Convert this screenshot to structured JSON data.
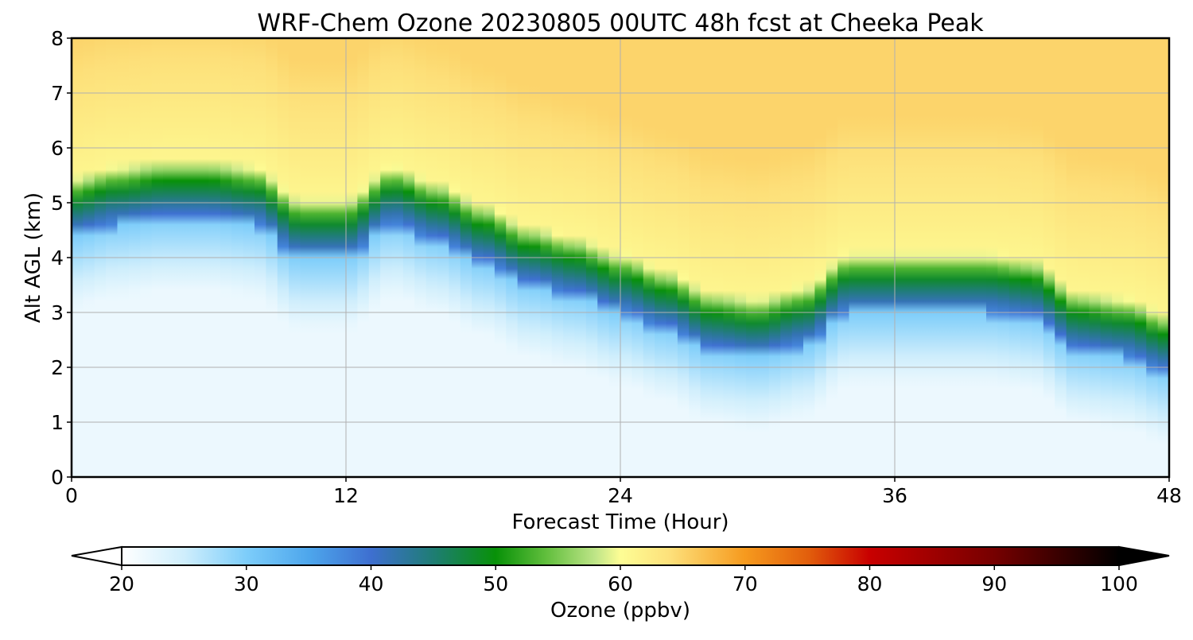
{
  "chart_data": {
    "type": "heatmap",
    "title": "WRF-Chem Ozone  20230805 00UTC 48h fcst at Cheeka Peak",
    "xlabel": "Forecast Time (Hour)",
    "ylabel": "Alt AGL (km)",
    "xlim": [
      0,
      48
    ],
    "ylim": [
      0,
      8
    ],
    "x_ticks": [
      "0",
      "12",
      "24",
      "36",
      "48"
    ],
    "y_ticks": [
      "0",
      "1",
      "2",
      "3",
      "4",
      "5",
      "6",
      "7",
      "8"
    ],
    "grid": true,
    "x": [
      0,
      2,
      4,
      6,
      8,
      10,
      12,
      14,
      16,
      18,
      20,
      22,
      24,
      26,
      28,
      30,
      32,
      34,
      36,
      38,
      40,
      42,
      44,
      46,
      48
    ],
    "ozone_transition_altitude_km": [
      5.1,
      5.3,
      5.4,
      5.4,
      5.3,
      4.7,
      4.7,
      5.3,
      5.0,
      4.6,
      4.2,
      4.0,
      3.7,
      3.4,
      3.0,
      2.9,
      3.1,
      3.7,
      3.7,
      3.7,
      3.7,
      3.6,
      3.0,
      2.9,
      2.6
    ],
    "colorbar": {
      "label": "Ozone  (ppbv)",
      "min": 20,
      "max": 100,
      "ticks": [
        "20",
        "30",
        "40",
        "50",
        "60",
        "70",
        "80",
        "90",
        "100"
      ],
      "extend": "both",
      "color_stops": [
        {
          "value": 20,
          "color": "#ffffff"
        },
        {
          "value": 25,
          "color": "#cfeefc"
        },
        {
          "value": 30,
          "color": "#7dcdfa"
        },
        {
          "value": 35,
          "color": "#4da6ec"
        },
        {
          "value": 40,
          "color": "#3e6fd0"
        },
        {
          "value": 45,
          "color": "#1e7d73"
        },
        {
          "value": 50,
          "color": "#089108"
        },
        {
          "value": 54,
          "color": "#60be3c"
        },
        {
          "value": 58,
          "color": "#bfe588"
        },
        {
          "value": 60,
          "color": "#fdfd95"
        },
        {
          "value": 64,
          "color": "#fde07a"
        },
        {
          "value": 70,
          "color": "#f69a1e"
        },
        {
          "value": 75,
          "color": "#e25f0c"
        },
        {
          "value": 80,
          "color": "#c80000"
        },
        {
          "value": 90,
          "color": "#760000"
        },
        {
          "value": 100,
          "color": "#000000"
        }
      ]
    }
  }
}
